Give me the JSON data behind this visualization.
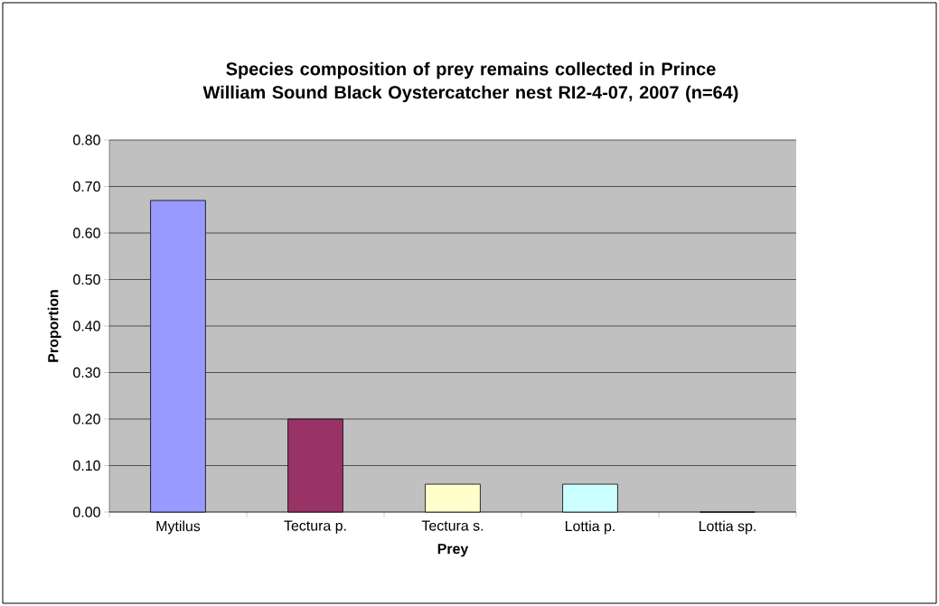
{
  "chart_data": {
    "type": "bar",
    "title": "Species composition of prey remains collected in Prince William Sound Black Oystercatcher nest RI2-4-07, 2007 (n=64)",
    "xlabel": "Prey",
    "ylabel": "Proportion",
    "categories": [
      "Mytilus",
      "Tectura p.",
      "Tectura s.",
      "Lottia p.",
      "Lottia sp."
    ],
    "values": [
      0.67,
      0.2,
      0.06,
      0.06,
      0
    ],
    "colors": [
      "#9999ff",
      "#993366",
      "#ffffcc",
      "#ccffff",
      "#9999ff"
    ],
    "ylim": [
      0,
      0.8
    ],
    "yticks": [
      {
        "value": 0,
        "label": "0.00"
      },
      {
        "value": 0.1,
        "label": "0.10"
      },
      {
        "value": 0.2,
        "label": "0.20"
      },
      {
        "value": 0.3,
        "label": "0.30"
      },
      {
        "value": 0.4,
        "label": "0.40"
      },
      {
        "value": 0.5,
        "label": "0.50"
      },
      {
        "value": 0.6,
        "label": "0.60"
      },
      {
        "value": 0.7,
        "label": "0.70"
      },
      {
        "value": 0.8,
        "label": "0.80"
      }
    ],
    "grid": "y"
  }
}
